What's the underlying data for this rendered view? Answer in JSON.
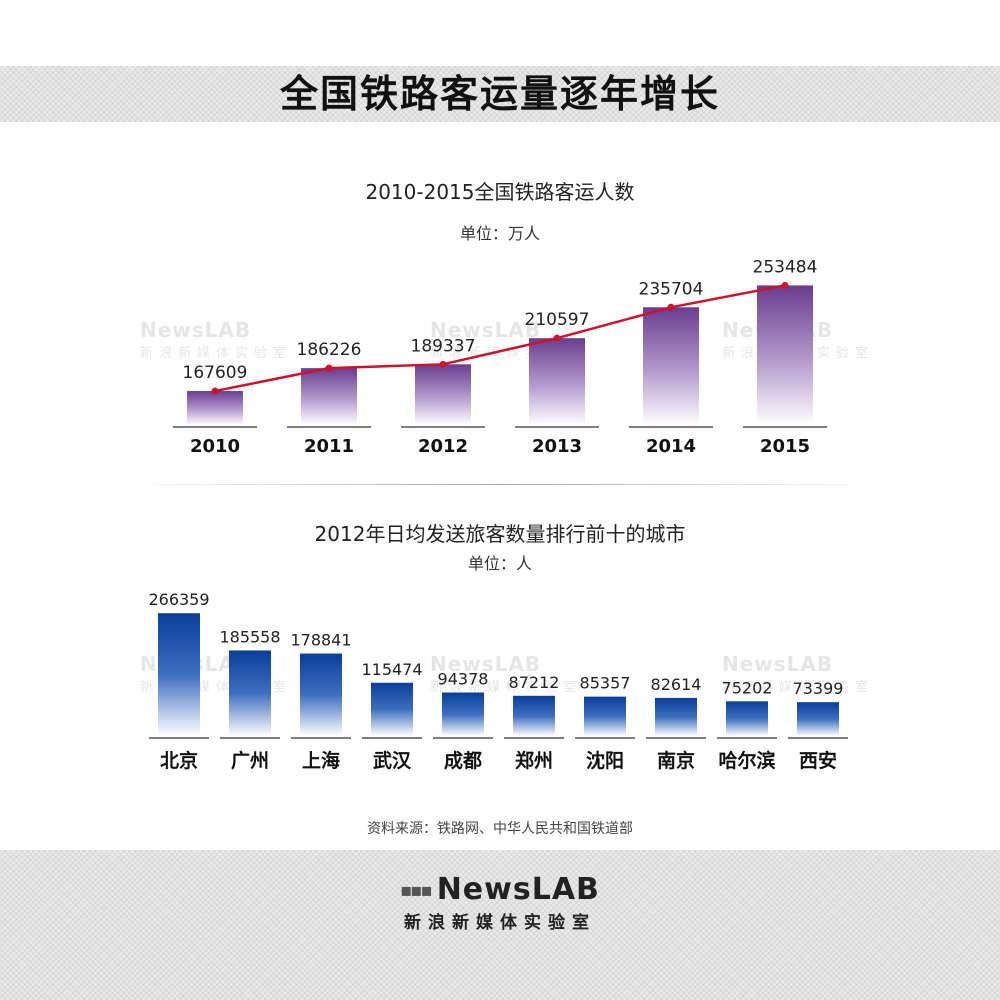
{
  "header": {
    "title": "全国铁路客运量逐年增长"
  },
  "chart_data": [
    {
      "type": "bar",
      "title": "2010-2015全国铁路客运人数",
      "unit": "单位：万人",
      "categories": [
        "2010",
        "2011",
        "2012",
        "2013",
        "2014",
        "2015"
      ],
      "values": [
        167609,
        186226,
        189337,
        210597,
        235704,
        253484
      ],
      "overlay_line": true,
      "colors": {
        "bar": "#6a3d8f",
        "line": "#d0112b"
      }
    },
    {
      "type": "bar",
      "title": "2012年日均发送旅客数量排行前十的城市",
      "unit": "单位：人",
      "categories": [
        "北京",
        "广州",
        "上海",
        "武汉",
        "成都",
        "郑州",
        "沈阳",
        "南京",
        "哈尔滨",
        "西安"
      ],
      "values": [
        266359,
        185558,
        178841,
        115474,
        94378,
        87212,
        85357,
        82614,
        75202,
        73399
      ],
      "colors": {
        "bar": "#0a3e9a"
      }
    }
  ],
  "source": "资料来源：铁路网、中华人民共和国铁道部",
  "watermark": {
    "logo": "NewsLAB",
    "sub": "新浪新媒体实验室"
  },
  "footer": {
    "logo": "NewsLAB",
    "sub": "新浪新媒体实验室"
  }
}
